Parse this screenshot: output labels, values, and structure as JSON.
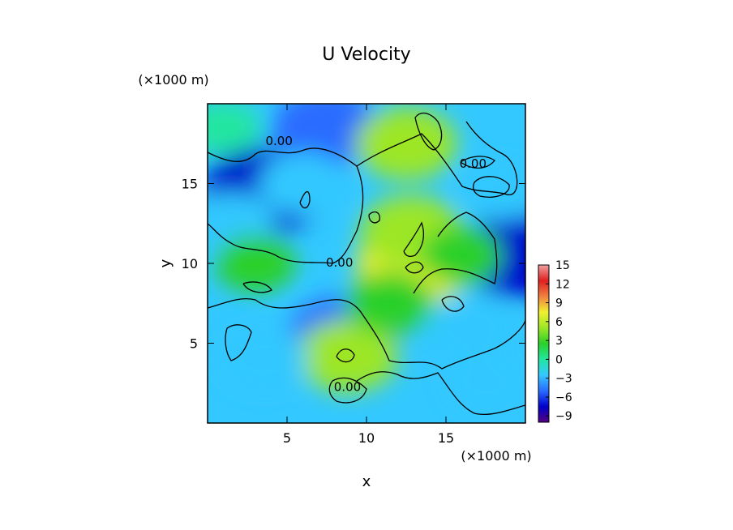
{
  "chart_data": {
    "type": "heatmap",
    "title": "U Velocity",
    "xlabel": "x",
    "ylabel": "y",
    "x_unit": "(×1000 m)",
    "y_unit": "(×1000 m)",
    "xlim": [
      0,
      20
    ],
    "ylim": [
      0,
      20
    ],
    "x_ticks": [
      {
        "value": 5,
        "label": "5"
      },
      {
        "value": 10,
        "label": "10"
      },
      {
        "value": 15,
        "label": "15"
      }
    ],
    "y_ticks": [
      {
        "value": 5,
        "label": "5"
      },
      {
        "value": 10,
        "label": "10"
      },
      {
        "value": 15,
        "label": "15"
      }
    ],
    "colorbar": {
      "range": [
        -10,
        15
      ],
      "ticks": [
        {
          "value": 15,
          "label": "15"
        },
        {
          "value": 12,
          "label": "12"
        },
        {
          "value": 9,
          "label": "9"
        },
        {
          "value": 6,
          "label": "6"
        },
        {
          "value": 3,
          "label": "3"
        },
        {
          "value": 0,
          "label": "0"
        },
        {
          "value": -3,
          "label": "−3"
        },
        {
          "value": -6,
          "label": "−6"
        },
        {
          "value": -9,
          "label": "−9"
        }
      ],
      "colors": [
        "#55007f",
        "#0000cc",
        "#2a6cff",
        "#33c8ff",
        "#22e6a0",
        "#2ad02a",
        "#9ce626",
        "#f0f030",
        "#f08040",
        "#e02020",
        "#f0a0a0"
      ]
    },
    "contour_labels": [
      {
        "x": 4.5,
        "y": 17.4,
        "text": "0.00"
      },
      {
        "x": 8.3,
        "y": 9.8,
        "text": "0.00"
      },
      {
        "x": 8.8,
        "y": 2.0,
        "text": "0.00"
      },
      {
        "x": 16.7,
        "y": 16.0,
        "text": "0.00"
      }
    ],
    "field_features": [
      {
        "x": 3.5,
        "y": 14.5,
        "value": -8
      },
      {
        "x": 7.5,
        "y": 18.5,
        "value": -6
      },
      {
        "x": 8.5,
        "y": 5.5,
        "value": -6
      },
      {
        "x": 19.5,
        "y": 10.5,
        "value": -7
      },
      {
        "x": 1.5,
        "y": 12.5,
        "value": -3
      },
      {
        "x": 12.5,
        "y": 17.5,
        "value": 5
      },
      {
        "x": 13.0,
        "y": 10.0,
        "value": 7
      },
      {
        "x": 12.8,
        "y": 12.0,
        "value": 5
      },
      {
        "x": 8.8,
        "y": 4.2,
        "value": 5
      },
      {
        "x": 11.5,
        "y": 7.5,
        "value": 3
      },
      {
        "x": 16.0,
        "y": 10.5,
        "value": 2
      },
      {
        "x": 3.0,
        "y": 10.0,
        "value": 2
      },
      {
        "x": 17.5,
        "y": 2.5,
        "value": -2
      },
      {
        "x": 3.5,
        "y": 4.0,
        "value": -3
      },
      {
        "x": 16.5,
        "y": 6.0,
        "value": -3
      },
      {
        "x": 6.0,
        "y": 15.0,
        "value": -3
      },
      {
        "x": 18.5,
        "y": 14.5,
        "value": -2
      },
      {
        "x": 1.0,
        "y": 18.5,
        "value": 1
      }
    ]
  }
}
